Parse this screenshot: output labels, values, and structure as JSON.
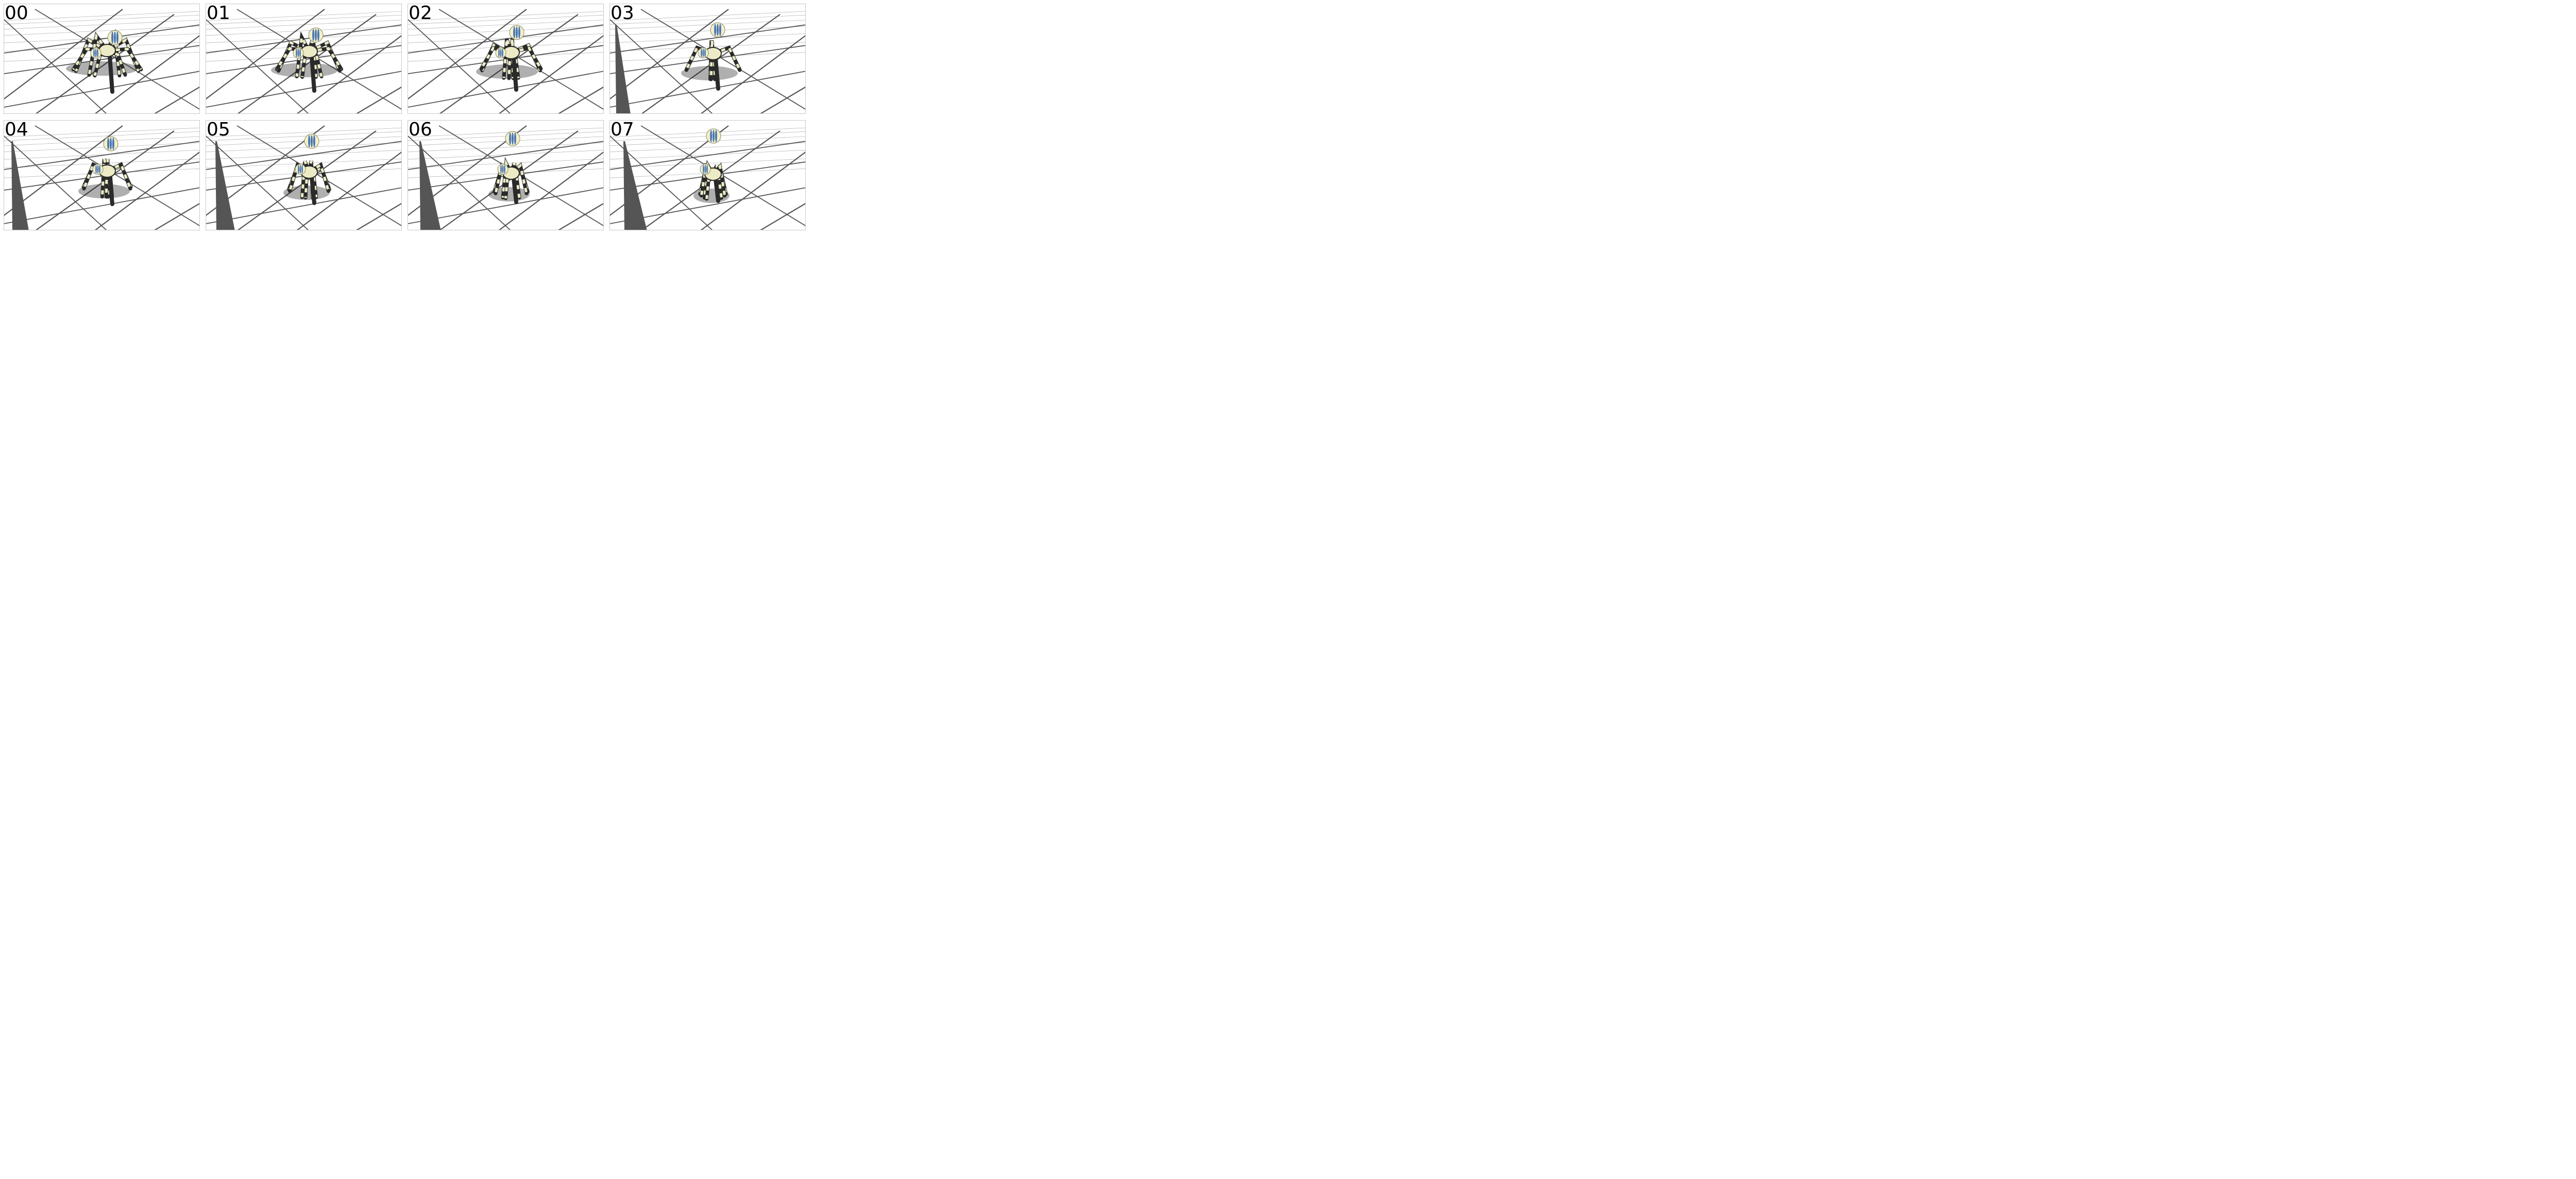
{
  "frames": [
    {
      "label": "00",
      "pose": 0
    },
    {
      "label": "01",
      "pose": 1
    },
    {
      "label": "02",
      "pose": 2
    },
    {
      "label": "03",
      "pose": 3
    },
    {
      "label": "04",
      "pose": 4
    },
    {
      "label": "05",
      "pose": 5
    },
    {
      "label": "06",
      "pose": 6
    },
    {
      "label": "07",
      "pose": 7
    }
  ],
  "colors": {
    "background": "#ffffff",
    "floor_line": "#555555",
    "shadow": "#1a1a1a",
    "leg_dark": "#2a2a2a",
    "leg_light": "#ecebc6",
    "ball": "#f3f0c8",
    "ball_stripe": "#2a5fb0",
    "panel_border": "#c8c8c8"
  }
}
